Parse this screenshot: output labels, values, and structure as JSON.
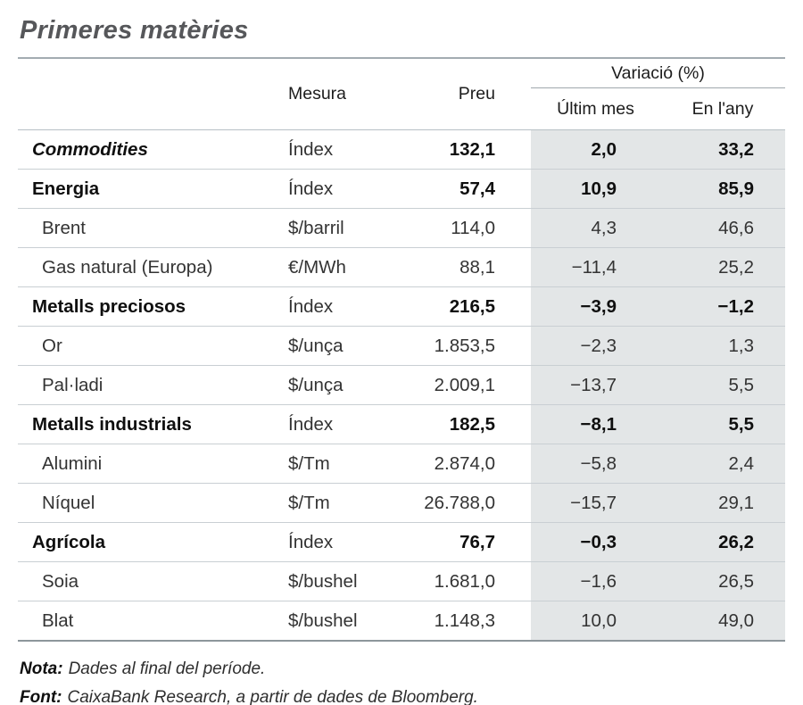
{
  "title": "Primeres matèries",
  "table": {
    "headers": {
      "mesura": "Mesura",
      "preu": "Preu",
      "variacio": "Variació (%)",
      "ultim_mes": "Últim mes",
      "en_lany": "En l'any"
    },
    "rows": [
      {
        "name": "Commodities",
        "bold": true,
        "italic": true,
        "indent": false,
        "mesura": "Índex",
        "preu": "132,1",
        "ultim_mes": "2,0",
        "en_lany": "33,2"
      },
      {
        "name": "Energia",
        "bold": true,
        "italic": false,
        "indent": false,
        "mesura": "Índex",
        "preu": "57,4",
        "ultim_mes": "10,9",
        "en_lany": "85,9"
      },
      {
        "name": "Brent",
        "bold": false,
        "italic": false,
        "indent": true,
        "mesura": "$/barril",
        "preu": "114,0",
        "ultim_mes": "4,3",
        "en_lany": "46,6"
      },
      {
        "name": "Gas natural (Europa)",
        "bold": false,
        "italic": false,
        "indent": true,
        "mesura": "€/MWh",
        "preu": "88,1",
        "ultim_mes": "−11,4",
        "en_lany": "25,2"
      },
      {
        "name": "Metalls preciosos",
        "bold": true,
        "italic": false,
        "indent": false,
        "mesura": "Índex",
        "preu": "216,5",
        "ultim_mes": "−3,9",
        "en_lany": "−1,2"
      },
      {
        "name": "Or",
        "bold": false,
        "italic": false,
        "indent": true,
        "mesura": "$/unça",
        "preu": "1.853,5",
        "ultim_mes": "−2,3",
        "en_lany": "1,3"
      },
      {
        "name": "Pal·ladi",
        "bold": false,
        "italic": false,
        "indent": true,
        "mesura": "$/unça",
        "preu": "2.009,1",
        "ultim_mes": "−13,7",
        "en_lany": "5,5"
      },
      {
        "name": "Metalls industrials",
        "bold": true,
        "italic": false,
        "indent": false,
        "mesura": "Índex",
        "preu": "182,5",
        "ultim_mes": "−8,1",
        "en_lany": "5,5"
      },
      {
        "name": "Alumini",
        "bold": false,
        "italic": false,
        "indent": true,
        "mesura": "$/Tm",
        "preu": "2.874,0",
        "ultim_mes": "−5,8",
        "en_lany": "2,4"
      },
      {
        "name": "Níquel",
        "bold": false,
        "italic": false,
        "indent": true,
        "mesura": "$/Tm",
        "preu": "26.788,0",
        "ultim_mes": "−15,7",
        "en_lany": "29,1"
      },
      {
        "name": "Agrícola",
        "bold": true,
        "italic": false,
        "indent": false,
        "mesura": "Índex",
        "preu": "76,7",
        "ultim_mes": "−0,3",
        "en_lany": "26,2"
      },
      {
        "name": "Soia",
        "bold": false,
        "italic": false,
        "indent": true,
        "mesura": "$/bushel",
        "preu": "1.681,0",
        "ultim_mes": "−1,6",
        "en_lany": "26,5"
      },
      {
        "name": "Blat",
        "bold": false,
        "italic": false,
        "indent": true,
        "mesura": "$/bushel",
        "preu": "1.148,3",
        "ultim_mes": "10,0",
        "en_lany": "49,0"
      }
    ]
  },
  "notes": {
    "nota_label": "Nota:",
    "nota_text": "Dades al final del període.",
    "font_label": "Font:",
    "font_text": "CaixaBank Research, a partir de dades de Bloomberg."
  },
  "colors": {
    "title_gray": "#56575a",
    "shade": "#e3e6e7",
    "rule_top": "#a3acb1",
    "rule_bottom": "#8d969b",
    "row_separator": "#c9cfd3"
  }
}
